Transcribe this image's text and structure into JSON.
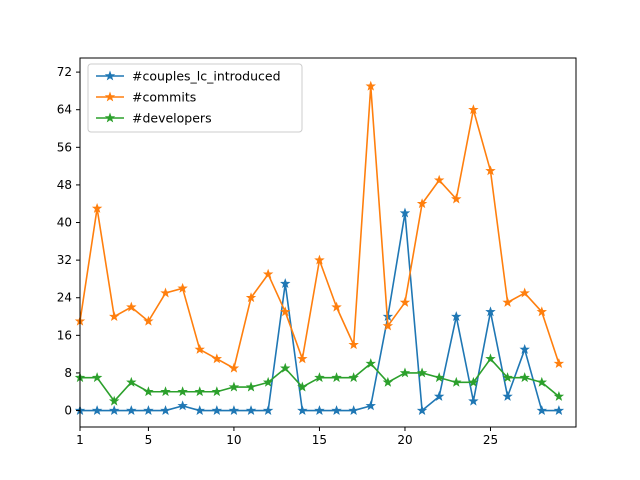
{
  "chart_data": {
    "type": "line",
    "x": [
      1,
      2,
      3,
      4,
      5,
      6,
      7,
      8,
      9,
      10,
      11,
      12,
      13,
      14,
      15,
      16,
      17,
      18,
      19,
      20,
      21,
      22,
      23,
      24,
      25,
      26,
      27,
      28,
      29
    ],
    "xlim": [
      1,
      30
    ],
    "ylim": [
      -3.5,
      75
    ],
    "xticks": [
      1,
      5,
      10,
      15,
      20,
      25
    ],
    "yticks": [
      0,
      8,
      16,
      24,
      32,
      40,
      48,
      56,
      64,
      72
    ],
    "legend_position": "upper-left",
    "grid": false,
    "marker": "star",
    "series": [
      {
        "name": "#couples_lc_introduced",
        "color": "#1f77b4",
        "values": [
          0,
          0,
          0,
          0,
          0,
          0,
          1,
          0,
          0,
          0,
          0,
          0,
          27,
          0,
          0,
          0,
          0,
          1,
          20,
          42,
          0,
          3,
          20,
          2,
          21,
          3,
          13,
          0,
          0
        ]
      },
      {
        "name": "#commits",
        "color": "#ff7f0e",
        "values": [
          19,
          43,
          20,
          22,
          19,
          25,
          26,
          13,
          11,
          9,
          24,
          29,
          21,
          11,
          32,
          22,
          14,
          69,
          18,
          23,
          44,
          49,
          45,
          64,
          51,
          23,
          25,
          21,
          10
        ]
      },
      {
        "name": "#developers",
        "color": "#2ca02c",
        "values": [
          7,
          7,
          2,
          6,
          4,
          4,
          4,
          4,
          4,
          5,
          5,
          6,
          9,
          5,
          7,
          7,
          7,
          10,
          6,
          8,
          8,
          7,
          6,
          6,
          11,
          7,
          7,
          6,
          3
        ]
      }
    ]
  }
}
